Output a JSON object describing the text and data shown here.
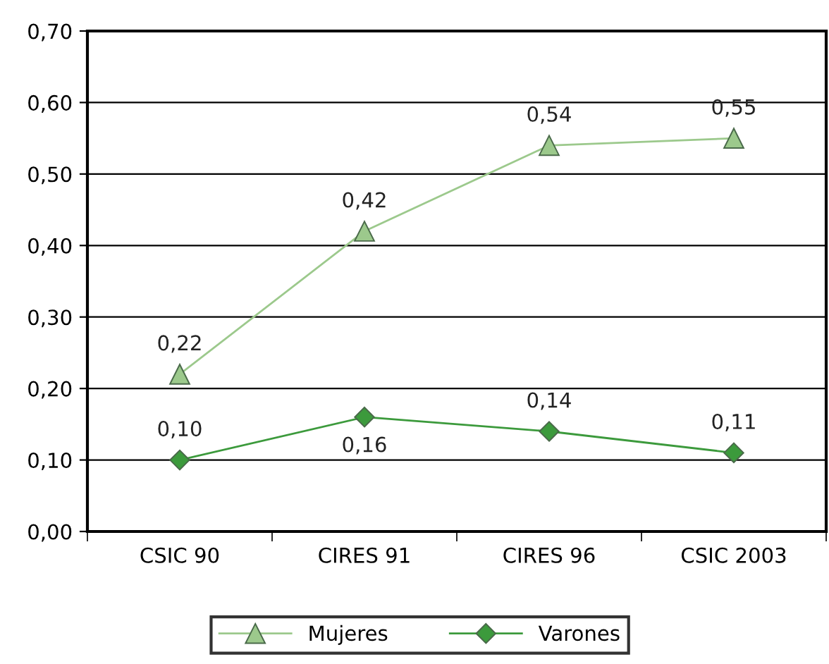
{
  "chart_data": {
    "type": "line",
    "categories": [
      "CSIC 90",
      "CIRES 91",
      "CIRES 96",
      "CSIC 2003"
    ],
    "series": [
      {
        "name": "Mujeres",
        "color": "#9cc98c",
        "marker": "triangle",
        "values": [
          0.22,
          0.42,
          0.54,
          0.55
        ],
        "value_labels": [
          "0,22",
          "0,42",
          "0,54",
          "0,55"
        ]
      },
      {
        "name": "Varones",
        "color": "#3c9a3c",
        "marker": "diamond",
        "values": [
          0.1,
          0.16,
          0.14,
          0.11
        ],
        "value_labels": [
          "0,10",
          "0,16",
          "0,14",
          "0,11"
        ]
      }
    ],
    "ylim": [
      0,
      0.7
    ],
    "yticks": [
      {
        "value": 0,
        "label": "0,00"
      },
      {
        "value": 0.1,
        "label": "0,10"
      },
      {
        "value": 0.2,
        "label": "0,20"
      },
      {
        "value": 0.3,
        "label": "0,30"
      },
      {
        "value": 0.4,
        "label": "0,40"
      },
      {
        "value": 0.5,
        "label": "0,50"
      },
      {
        "value": 0.6,
        "label": "0,60"
      },
      {
        "value": 0.7,
        "label": "0,70"
      }
    ],
    "grid": "y",
    "legend": "bottom"
  }
}
